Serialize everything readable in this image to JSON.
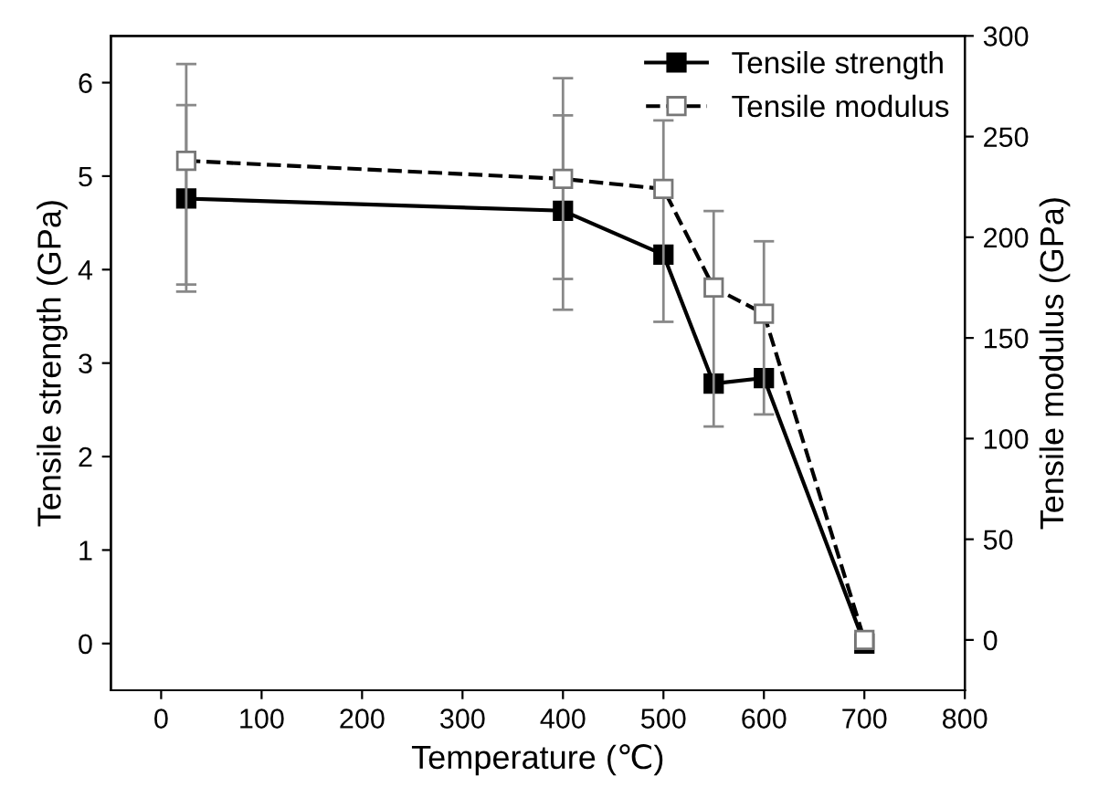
{
  "chart_data": {
    "type": "line",
    "xlabel": "Temperature (℃)",
    "ylabel": "Tensile strength (GPa)",
    "y2label": "Tensile modulus (GPa)",
    "x": [
      25,
      400,
      500,
      550,
      600,
      700
    ],
    "xlim": [
      -50,
      800
    ],
    "xticks": [
      0,
      100,
      200,
      300,
      400,
      500,
      600,
      700,
      800
    ],
    "ylim": [
      -0.5,
      6.5
    ],
    "yticks": [
      0,
      1,
      2,
      3,
      4,
      5,
      6
    ],
    "y2lim": [
      -25,
      300
    ],
    "y2ticks": [
      0,
      50,
      100,
      150,
      200,
      250,
      300
    ],
    "legend": "top right",
    "grid": false,
    "series": [
      {
        "name": "Tensile strength",
        "color": "#000000",
        "marker": "square",
        "line_style": "solid",
        "values": [
          4.76,
          4.63,
          4.16,
          2.78,
          2.84,
          0
        ],
        "errors": [
          [
            3.84,
            5.76
          ],
          [
            3.9,
            5.65
          ],
          null,
          null,
          null,
          null
        ]
      },
      {
        "name": "Tensile modulus",
        "color": "#000000",
        "marker": "square",
        "line_style": "dashed",
        "axis": "y2",
        "values": [
          238,
          229,
          224,
          175,
          162,
          0
        ],
        "errors": [
          [
            173,
            286
          ],
          [
            164,
            279
          ],
          [
            158,
            258
          ],
          [
            106,
            213
          ],
          [
            112,
            198
          ],
          null
        ]
      }
    ]
  }
}
